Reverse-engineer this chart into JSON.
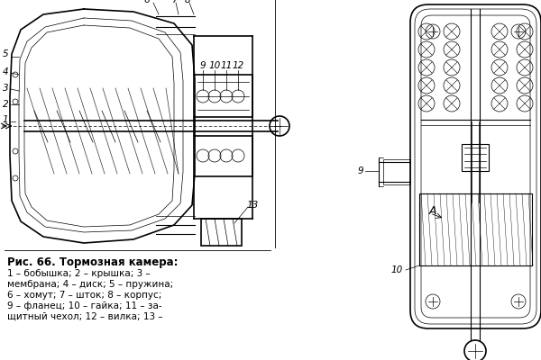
{
  "background_color": "#ffffff",
  "fig_width": 6.0,
  "fig_height": 4.0,
  "caption_title": "Рис. 66. Тормозная камера:",
  "caption_lines": [
    "1 – бобышка; 2 – крышка; 3 –",
    "мембрана; 4 – диск; 5 – пружина;",
    "6 – хомут; 7 – шток; 8 – корпус;",
    "9 – фланец; 10 – гайка; 11 – за-",
    "щитный чехол; 12 – вилка; 13 –"
  ],
  "line_color": "#000000",
  "lw_main": 1.2,
  "lw_med": 0.8,
  "lw_thin": 0.5
}
